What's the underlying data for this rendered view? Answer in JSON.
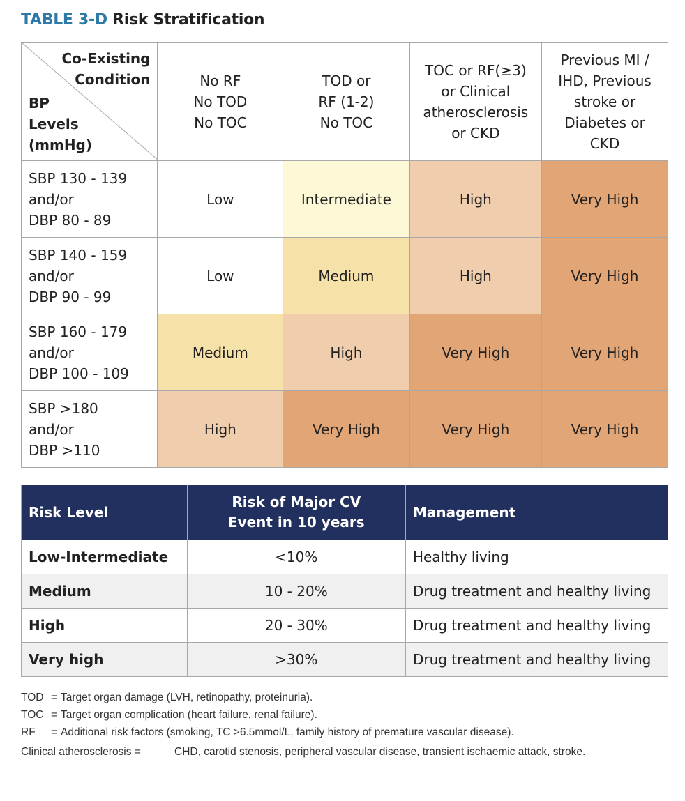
{
  "title": {
    "tag": "TABLE 3-D",
    "text": "Risk Stratification"
  },
  "risk_colors": {
    "Low": "#ffffff",
    "Intermediate": "#fdf9d6",
    "Medium": "#f6e1a8",
    "High": "#f0cdac",
    "Very High": "#e2a576"
  },
  "matrix": {
    "corner": {
      "top": [
        "Co-Existing",
        "Condition"
      ],
      "bottom": [
        "BP",
        "Levels",
        "(mmHg)"
      ]
    },
    "columns": [
      [
        "No RF",
        "No TOD",
        "No TOC"
      ],
      [
        "TOD or",
        "RF (1-2)",
        "No TOC"
      ],
      [
        "TOC or RF(≥3)",
        "or Clinical",
        "atherosclerosis",
        "or CKD"
      ],
      [
        "Previous MI /",
        "IHD, Previous",
        "stroke or",
        "Diabetes or",
        "CKD"
      ]
    ],
    "rows": [
      {
        "label": [
          "SBP 130 - 139",
          "and/or",
          "DBP 80 - 89"
        ],
        "cells": [
          "Low",
          "Intermediate",
          "High",
          "Very High"
        ]
      },
      {
        "label": [
          "SBP 140 - 159",
          "and/or",
          "DBP 90 - 99"
        ],
        "cells": [
          "Low",
          "Medium",
          "High",
          "Very High"
        ]
      },
      {
        "label": [
          "SBP 160 - 179",
          "and/or",
          "DBP 100 - 109"
        ],
        "cells": [
          "Medium",
          "High",
          "Very High",
          "Very High"
        ]
      },
      {
        "label": [
          "SBP >180",
          "and/or",
          "DBP >110"
        ],
        "cells": [
          "High",
          "Very High",
          "Very High",
          "Very High"
        ]
      }
    ]
  },
  "management": {
    "header_color": "#22305f",
    "headers": [
      "Risk Level",
      "Risk of Major CV Event in 10 years",
      "Management"
    ],
    "rows": [
      [
        "Low-Intermediate",
        "<10%",
        "Healthy living"
      ],
      [
        "Medium",
        "10 - 20%",
        "Drug treatment and healthy living"
      ],
      [
        "High",
        "20 - 30%",
        "Drug treatment and healthy living"
      ],
      [
        "Very high",
        ">30%",
        "Drug treatment and healthy living"
      ]
    ]
  },
  "notes": [
    {
      "term": "TOD",
      "def": "Target organ damage (LVH, retinopathy, proteinuria)."
    },
    {
      "term": "TOC",
      "def": "Target organ complication (heart failure, renal failure)."
    },
    {
      "term": "RF",
      "def": "Additional risk factors (smoking, TC >6.5mmol/L, family history of premature vascular disease)."
    }
  ],
  "clinical_note": {
    "term": "Clinical atherosclerosis",
    "def": "CHD, carotid stenosis, peripheral vascular disease, transient ischaemic attack, stroke."
  }
}
